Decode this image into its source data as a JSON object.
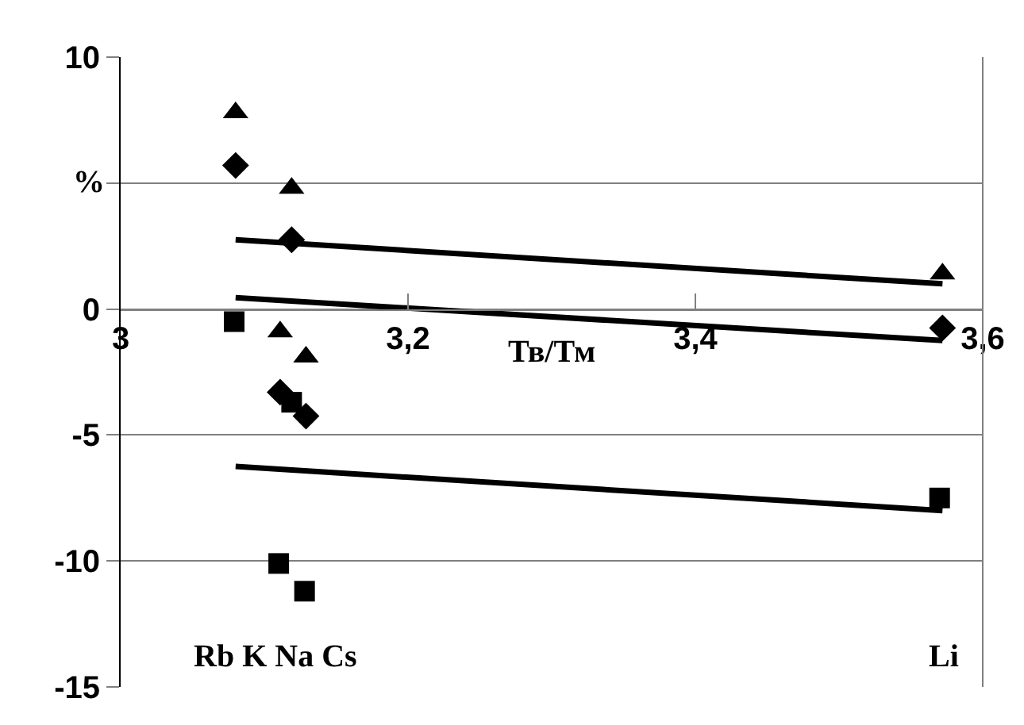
{
  "chart_data": {
    "type": "scatter",
    "xlabel": "Тв/Тм",
    "ylabel": "%",
    "xlim": [
      3,
      3.6
    ],
    "xticks": [
      {
        "value": 3,
        "label": "3"
      },
      {
        "value": 3.2,
        "label": "3,2"
      },
      {
        "value": 3.4,
        "label": "3,4"
      },
      {
        "value": 3.6,
        "label": "3,6"
      }
    ],
    "ylim": [
      -15,
      10
    ],
    "yticks": [
      -15,
      -10,
      -5,
      0,
      {
        "value": 5,
        "label": null
      },
      10
    ],
    "grid": "y",
    "series": [
      {
        "marker": "triangle",
        "color": "#000000",
        "x": [
          3.08,
          3.111,
          3.119,
          3.129,
          3.572
        ],
        "values": [
          7.8,
          -0.9,
          4.8,
          -1.9,
          1.4
        ]
      },
      {
        "marker": "diamond",
        "color": "#000000",
        "x": [
          3.08,
          3.111,
          3.119,
          3.129,
          3.572
        ],
        "values": [
          5.7,
          -3.3,
          2.75,
          -4.25,
          -0.75
        ]
      },
      {
        "marker": "square",
        "color": "#000000",
        "x": [
          3.079,
          3.11,
          3.119,
          3.128,
          3.57
        ],
        "values": [
          -0.5,
          -10.1,
          -3.7,
          -11.2,
          -7.5
        ]
      },
      {
        "type": "line",
        "marker": "none",
        "color": "#000000",
        "x": [
          3.08,
          3.572
        ],
        "values": [
          2.75,
          1.0
        ]
      },
      {
        "type": "line",
        "marker": "none",
        "color": "#000000",
        "x": [
          3.08,
          3.572
        ],
        "values": [
          0.45,
          -1.25
        ]
      },
      {
        "type": "line",
        "marker": "none",
        "color": "#000000",
        "x": [
          3.08,
          3.572
        ],
        "values": [
          -6.25,
          -8.0
        ]
      }
    ],
    "annotations": [
      "Rb K Na Cs",
      "Li"
    ]
  }
}
